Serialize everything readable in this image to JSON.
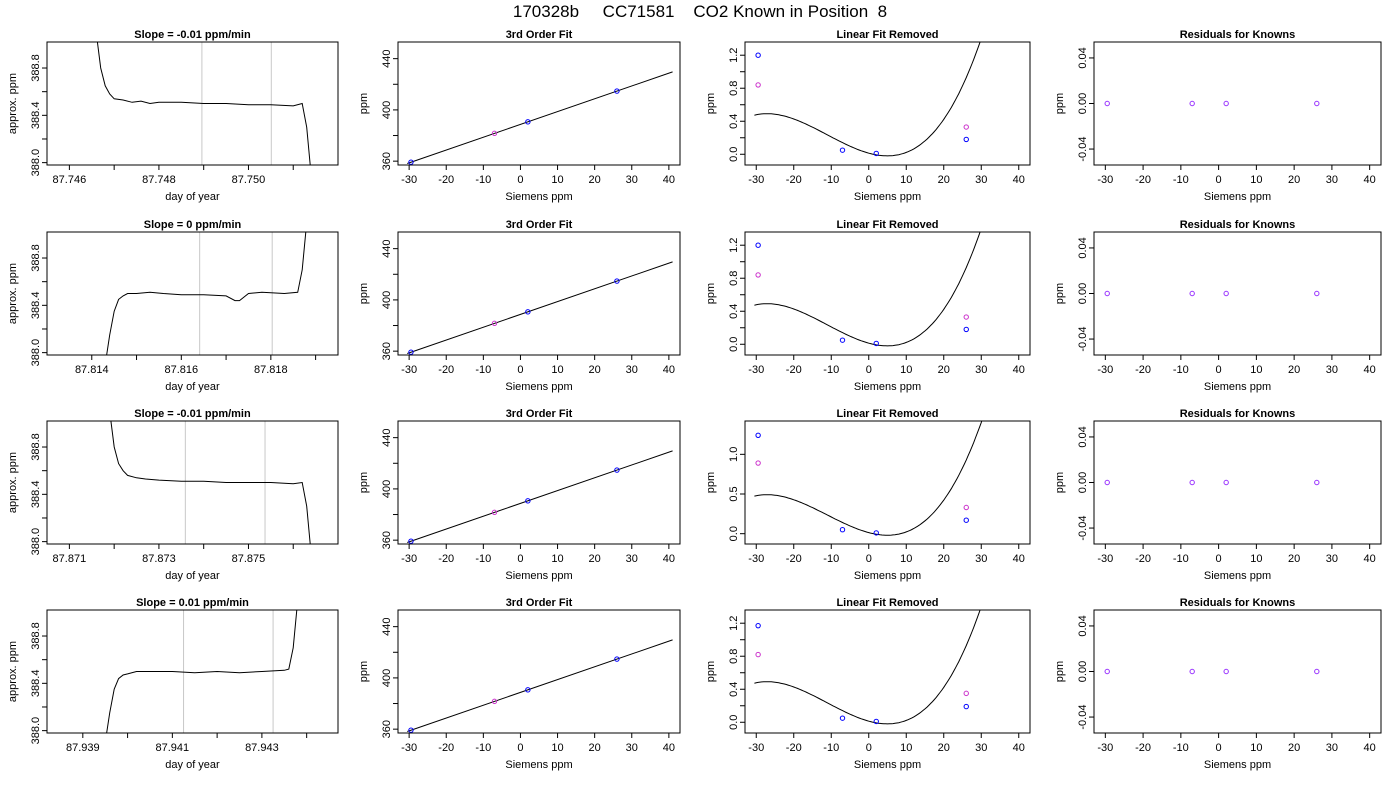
{
  "page_title": "170328b     CC71581    CO2 Known in Position  8",
  "colors": {
    "frame": "#000000",
    "curve": "#000000",
    "window_line": "#c8c8c8",
    "point_measured": "#0000ff",
    "point_reference": "#cc33cc",
    "point_known": "#9933ff"
  },
  "chart_data": [
    {
      "row": 1,
      "panel": "timeseries",
      "type": "line",
      "title": "Slope =  -0.01  ppm/min",
      "xlabel": "day of year",
      "ylabel": "approx. ppm",
      "xlim": [
        87.7455,
        87.752
      ],
      "ylim": [
        387.98,
        389.02
      ],
      "xticks": [
        87.746,
        87.747,
        87.748,
        87.749,
        87.75,
        87.751
      ],
      "xtick_labels": [
        "87.746",
        "",
        "87.748",
        "",
        "87.750",
        ""
      ],
      "yticks": [
        388.0,
        388.2,
        388.4,
        388.6,
        388.8
      ],
      "ytick_labels": [
        "388.0",
        "",
        "388.4",
        "",
        "388.8"
      ],
      "window": [
        87.74896,
        87.75051
      ],
      "x": [
        87.7466,
        87.7467,
        87.7468,
        87.7469,
        87.747,
        87.7472,
        87.7474,
        87.7476,
        87.7478,
        87.748,
        87.7485,
        87.749,
        87.7495,
        87.75,
        87.7505,
        87.751,
        87.7512,
        87.7513,
        87.7514
      ],
      "y": [
        389.1,
        388.8,
        388.65,
        388.58,
        388.54,
        388.53,
        388.51,
        388.52,
        388.5,
        388.51,
        388.51,
        388.5,
        388.5,
        388.49,
        388.49,
        388.48,
        388.5,
        388.3,
        387.9
      ]
    },
    {
      "row": 1,
      "panel": "fit",
      "type": "scatter",
      "title": "3rd Order Fit",
      "xlabel": "Siemens ppm",
      "ylabel": "ppm",
      "xlim": [
        -33,
        43
      ],
      "ylim": [
        357,
        453
      ],
      "xticks": [
        -30,
        -20,
        -10,
        0,
        10,
        20,
        30,
        40
      ],
      "yticks": [
        360,
        380,
        400,
        420,
        440
      ],
      "ytick_labels": [
        "360",
        "",
        "400",
        "",
        "440"
      ],
      "fit": {
        "a": 388.69,
        "b": 1.0
      },
      "points_measured": [
        [
          -29.5,
          359.2
        ],
        [
          2.0,
          390.7
        ],
        [
          26.0,
          414.7
        ]
      ],
      "points_reference": [
        [
          -7.0,
          381.7
        ]
      ]
    },
    {
      "row": 1,
      "panel": "linear_removed",
      "type": "scatter",
      "title": "Linear Fit Removed",
      "xlabel": "Siemens ppm",
      "ylabel": "ppm",
      "xlim": [
        -33,
        43
      ],
      "ylim": [
        -0.13,
        1.36
      ],
      "xticks": [
        -30,
        -20,
        -10,
        0,
        10,
        20,
        30,
        40
      ],
      "yticks": [
        0.0,
        0.2,
        0.4,
        0.6,
        0.8,
        1.0,
        1.2
      ],
      "ytick_labels": [
        "0.0",
        "",
        "0.4",
        "",
        "0.8",
        "",
        "1.2"
      ],
      "cubic": {
        "a": 0.0135,
        "b": -0.0125,
        "c": 0.00103,
        "d": 3.1e-05
      },
      "points_measured": [
        [
          -29.5,
          1.2
        ],
        [
          -7.0,
          0.05
        ],
        [
          2.0,
          0.01
        ],
        [
          26.0,
          0.18
        ]
      ],
      "points_reference": [
        [
          -29.5,
          0.84
        ],
        [
          26.0,
          0.33
        ]
      ]
    },
    {
      "row": 1,
      "panel": "residuals",
      "type": "scatter",
      "title": "Residuals for Knowns",
      "xlabel": "Siemens ppm",
      "ylabel": "ppm",
      "xlim": [
        -33,
        43
      ],
      "ylim": [
        -0.054,
        0.054
      ],
      "xticks": [
        -30,
        -20,
        -10,
        0,
        10,
        20,
        30,
        40
      ],
      "yticks": [
        -0.04,
        0.0,
        0.04
      ],
      "ytick_labels": [
        "-0.04",
        "0.00",
        "0.04"
      ],
      "points_known": [
        [
          -29.5,
          0.0
        ],
        [
          -7.0,
          0.0
        ],
        [
          2.0,
          0.0
        ],
        [
          26.0,
          0.0
        ]
      ]
    },
    {
      "row": 2,
      "panel": "timeseries",
      "type": "line",
      "title": "Slope =  0  ppm/min",
      "xlabel": "day of year",
      "ylabel": "approx. ppm",
      "xlim": [
        87.813,
        87.8195
      ],
      "ylim": [
        387.98,
        389.02
      ],
      "xticks": [
        87.814,
        87.815,
        87.816,
        87.817,
        87.818,
        87.819
      ],
      "xtick_labels": [
        "87.814",
        "",
        "87.816",
        "",
        "87.818",
        ""
      ],
      "yticks": [
        388.0,
        388.2,
        388.4,
        388.6,
        388.8
      ],
      "ytick_labels": [
        "388.0",
        "",
        "388.4",
        "",
        "388.8"
      ],
      "window": [
        87.81641,
        87.81803
      ],
      "x": [
        87.8143,
        87.8144,
        87.8145,
        87.8146,
        87.8147,
        87.8148,
        87.815,
        87.8153,
        87.8156,
        87.816,
        87.8165,
        87.817,
        87.8172,
        87.8173,
        87.8175,
        87.8178,
        87.8183,
        87.8186,
        87.8187,
        87.8188
      ],
      "y": [
        387.9,
        388.15,
        388.35,
        388.45,
        388.48,
        388.5,
        388.5,
        388.51,
        388.5,
        388.49,
        388.49,
        388.48,
        388.44,
        388.44,
        388.5,
        388.51,
        388.5,
        388.51,
        388.7,
        389.1
      ]
    },
    {
      "row": 2,
      "panel": "fit",
      "type": "scatter",
      "title": "3rd Order Fit",
      "xlabel": "Siemens ppm",
      "ylabel": "ppm",
      "xlim": [
        -33,
        43
      ],
      "ylim": [
        357,
        453
      ],
      "xticks": [
        -30,
        -20,
        -10,
        0,
        10,
        20,
        30,
        40
      ],
      "yticks": [
        360,
        380,
        400,
        420,
        440
      ],
      "ytick_labels": [
        "360",
        "",
        "400",
        "",
        "440"
      ],
      "fit": {
        "a": 388.69,
        "b": 1.0
      },
      "points_measured": [
        [
          -29.5,
          359.2
        ],
        [
          2.0,
          390.7
        ],
        [
          26.0,
          414.7
        ]
      ],
      "points_reference": [
        [
          -7.0,
          381.7
        ]
      ]
    },
    {
      "row": 2,
      "panel": "linear_removed",
      "type": "scatter",
      "title": "Linear Fit Removed",
      "xlabel": "Siemens ppm",
      "ylabel": "ppm",
      "xlim": [
        -33,
        43
      ],
      "ylim": [
        -0.13,
        1.36
      ],
      "xticks": [
        -30,
        -20,
        -10,
        0,
        10,
        20,
        30,
        40
      ],
      "yticks": [
        0.0,
        0.2,
        0.4,
        0.6,
        0.8,
        1.0,
        1.2
      ],
      "ytick_labels": [
        "0.0",
        "",
        "0.4",
        "",
        "0.8",
        "",
        "1.2"
      ],
      "cubic": {
        "a": 0.0135,
        "b": -0.0125,
        "c": 0.00103,
        "d": 3.1e-05
      },
      "points_measured": [
        [
          -29.5,
          1.2
        ],
        [
          -7.0,
          0.05
        ],
        [
          2.0,
          0.01
        ],
        [
          26.0,
          0.18
        ]
      ],
      "points_reference": [
        [
          -29.5,
          0.84
        ],
        [
          26.0,
          0.33
        ]
      ]
    },
    {
      "row": 2,
      "panel": "residuals",
      "type": "scatter",
      "title": "Residuals for Knowns",
      "xlabel": "Siemens ppm",
      "ylabel": "ppm",
      "xlim": [
        -33,
        43
      ],
      "ylim": [
        -0.054,
        0.054
      ],
      "xticks": [
        -30,
        -20,
        -10,
        0,
        10,
        20,
        30,
        40
      ],
      "yticks": [
        -0.04,
        0.0,
        0.04
      ],
      "ytick_labels": [
        "-0.04",
        "0.00",
        "0.04"
      ],
      "points_known": [
        [
          -29.5,
          0.0
        ],
        [
          -7.0,
          0.0
        ],
        [
          2.0,
          0.0
        ],
        [
          26.0,
          0.0
        ]
      ]
    },
    {
      "row": 3,
      "panel": "timeseries",
      "type": "line",
      "title": "Slope =  -0.01  ppm/min",
      "xlabel": "day of year",
      "ylabel": "approx. ppm",
      "xlim": [
        87.8705,
        87.877
      ],
      "ylim": [
        387.98,
        389.02
      ],
      "xticks": [
        87.871,
        87.872,
        87.873,
        87.874,
        87.875,
        87.876
      ],
      "xtick_labels": [
        "87.871",
        "",
        "87.873",
        "",
        "87.875",
        ""
      ],
      "yticks": [
        388.0,
        388.2,
        388.4,
        388.6,
        388.8
      ],
      "ytick_labels": [
        "388.0",
        "",
        "388.4",
        "",
        "388.8"
      ],
      "window": [
        87.87359,
        87.87537
      ],
      "x": [
        87.8719,
        87.872,
        87.8721,
        87.8722,
        87.8723,
        87.8725,
        87.8727,
        87.873,
        87.8735,
        87.874,
        87.8745,
        87.875,
        87.8755,
        87.876,
        87.8762,
        87.8763,
        87.8764
      ],
      "y": [
        389.1,
        388.8,
        388.66,
        388.6,
        388.56,
        388.54,
        388.53,
        388.52,
        388.51,
        388.51,
        388.5,
        388.5,
        388.5,
        388.49,
        388.5,
        388.3,
        387.9
      ]
    },
    {
      "row": 3,
      "panel": "fit",
      "type": "scatter",
      "title": "3rd Order Fit",
      "xlabel": "Siemens ppm",
      "ylabel": "ppm",
      "xlim": [
        -33,
        43
      ],
      "ylim": [
        357,
        453
      ],
      "xticks": [
        -30,
        -20,
        -10,
        0,
        10,
        20,
        30,
        40
      ],
      "yticks": [
        360,
        380,
        400,
        420,
        440
      ],
      "ytick_labels": [
        "360",
        "",
        "400",
        "",
        "440"
      ],
      "fit": {
        "a": 388.69,
        "b": 1.0
      },
      "points_measured": [
        [
          -29.5,
          359.2
        ],
        [
          2.0,
          390.7
        ],
        [
          26.0,
          414.7
        ]
      ],
      "points_reference": [
        [
          -7.0,
          381.7
        ]
      ]
    },
    {
      "row": 3,
      "panel": "linear_removed",
      "type": "scatter",
      "title": "Linear Fit Removed",
      "xlabel": "Siemens ppm",
      "ylabel": "ppm",
      "xlim": [
        -33,
        43
      ],
      "ylim": [
        -0.13,
        1.42
      ],
      "xticks": [
        -30,
        -20,
        -10,
        0,
        10,
        20,
        30,
        40
      ],
      "yticks": [
        0.0,
        0.5,
        1.0
      ],
      "ytick_labels": [
        "0.0",
        "0.5",
        "1.0"
      ],
      "cubic": {
        "a": 0.0135,
        "b": -0.0125,
        "c": 0.00103,
        "d": 3.1e-05
      },
      "points_measured": [
        [
          -29.5,
          1.24
        ],
        [
          -7.0,
          0.05
        ],
        [
          2.0,
          0.01
        ],
        [
          26.0,
          0.17
        ]
      ],
      "points_reference": [
        [
          -29.5,
          0.89
        ],
        [
          26.0,
          0.33
        ]
      ]
    },
    {
      "row": 3,
      "panel": "residuals",
      "type": "scatter",
      "title": "Residuals for Knowns",
      "xlabel": "Siemens ppm",
      "ylabel": "ppm",
      "xlim": [
        -33,
        43
      ],
      "ylim": [
        -0.054,
        0.054
      ],
      "xticks": [
        -30,
        -20,
        -10,
        0,
        10,
        20,
        30,
        40
      ],
      "yticks": [
        -0.04,
        0.0,
        0.04
      ],
      "ytick_labels": [
        "-0.04",
        "0.00",
        "0.04"
      ],
      "points_known": [
        [
          -29.5,
          0.0
        ],
        [
          -7.0,
          0.0
        ],
        [
          2.0,
          0.0
        ],
        [
          26.0,
          0.0
        ]
      ]
    },
    {
      "row": 4,
      "panel": "timeseries",
      "type": "line",
      "title": "Slope =  0.01  ppm/min",
      "xlabel": "day of year",
      "ylabel": "approx. ppm",
      "xlim": [
        87.9382,
        87.9447
      ],
      "ylim": [
        387.98,
        389.02
      ],
      "xticks": [
        87.939,
        87.94,
        87.941,
        87.942,
        87.943,
        87.944
      ],
      "xtick_labels": [
        "87.939",
        "",
        "87.941",
        "",
        "87.943",
        ""
      ],
      "yticks": [
        388.0,
        388.2,
        388.4,
        388.6,
        388.8
      ],
      "ytick_labels": [
        "388.0",
        "",
        "388.4",
        "",
        "388.8"
      ],
      "window": [
        87.94125,
        87.94325
      ],
      "x": [
        87.9395,
        87.9396,
        87.9397,
        87.9398,
        87.9399,
        87.94,
        87.9402,
        87.9405,
        87.941,
        87.9415,
        87.942,
        87.9425,
        87.943,
        87.9435,
        87.9436,
        87.9437,
        87.9438
      ],
      "y": [
        387.9,
        388.15,
        388.35,
        388.44,
        388.47,
        388.48,
        388.5,
        388.5,
        388.5,
        388.49,
        388.5,
        388.49,
        388.5,
        388.51,
        388.52,
        388.7,
        389.1
      ]
    },
    {
      "row": 4,
      "panel": "fit",
      "type": "scatter",
      "title": "3rd Order Fit",
      "xlabel": "Siemens ppm",
      "ylabel": "ppm",
      "xlim": [
        -33,
        43
      ],
      "ylim": [
        357,
        453
      ],
      "xticks": [
        -30,
        -20,
        -10,
        0,
        10,
        20,
        30,
        40
      ],
      "yticks": [
        360,
        380,
        400,
        420,
        440
      ],
      "ytick_labels": [
        "360",
        "",
        "400",
        "",
        "440"
      ],
      "fit": {
        "a": 388.69,
        "b": 1.0
      },
      "points_measured": [
        [
          -29.5,
          359.2
        ],
        [
          2.0,
          390.7
        ],
        [
          26.0,
          414.7
        ]
      ],
      "points_reference": [
        [
          -7.0,
          381.7
        ]
      ]
    },
    {
      "row": 4,
      "panel": "linear_removed",
      "type": "scatter",
      "title": "Linear Fit Removed",
      "xlabel": "Siemens ppm",
      "ylabel": "ppm",
      "xlim": [
        -33,
        43
      ],
      "ylim": [
        -0.13,
        1.36
      ],
      "xticks": [
        -30,
        -20,
        -10,
        0,
        10,
        20,
        30,
        40
      ],
      "yticks": [
        0.0,
        0.2,
        0.4,
        0.6,
        0.8,
        1.0,
        1.2
      ],
      "ytick_labels": [
        "0.0",
        "",
        "0.4",
        "",
        "0.8",
        "",
        "1.2"
      ],
      "cubic": {
        "a": 0.0135,
        "b": -0.0125,
        "c": 0.00103,
        "d": 3.1e-05
      },
      "points_measured": [
        [
          -29.5,
          1.17
        ],
        [
          -7.0,
          0.05
        ],
        [
          2.0,
          0.01
        ],
        [
          26.0,
          0.19
        ]
      ],
      "points_reference": [
        [
          -29.5,
          0.82
        ],
        [
          26.0,
          0.35
        ]
      ]
    },
    {
      "row": 4,
      "panel": "residuals",
      "type": "scatter",
      "title": "Residuals for Knowns",
      "xlabel": "Siemens ppm",
      "ylabel": "ppm",
      "xlim": [
        -33,
        43
      ],
      "ylim": [
        -0.054,
        0.054
      ],
      "xticks": [
        -30,
        -20,
        -10,
        0,
        10,
        20,
        30,
        40
      ],
      "yticks": [
        -0.04,
        0.0,
        0.04
      ],
      "ytick_labels": [
        "-0.04",
        "0.00",
        "0.04"
      ],
      "points_known": [
        [
          -29.5,
          0.0
        ],
        [
          -7.0,
          0.0
        ],
        [
          2.0,
          0.0
        ],
        [
          26.0,
          0.0
        ]
      ]
    }
  ]
}
